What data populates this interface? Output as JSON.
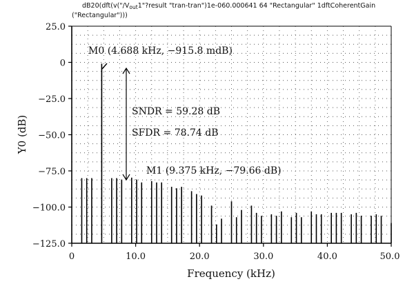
{
  "chart_data": {
    "type": "bar",
    "title_lines": [
      "dB20(dft(v(\"/V",
      "out",
      "1\"?result \"tran-tran\")1e-060.000641 64 \"Rectangular\" 1dftCoherentGain",
      "(\"Rectangular\")))"
    ],
    "xlabel": "Frequency (kHz)",
    "ylabel": "Y0 (dB)",
    "xlim": [
      0,
      50
    ],
    "ylim": [
      -125,
      25
    ],
    "xticks": [
      "0",
      "10.0",
      "20.0",
      "30.0",
      "40.0",
      "50.0"
    ],
    "yticks": [
      "25.0",
      "0",
      "-25.0",
      "-50.0",
      "-75.0",
      "-100.0",
      "-125.0"
    ],
    "grid": true,
    "x": [
      1.5625,
      2.344,
      3.125,
      4.6875,
      6.25,
      7.031,
      7.8125,
      9.375,
      10.156,
      10.9375,
      12.5,
      13.281,
      14.0625,
      15.625,
      16.406,
      17.1875,
      18.75,
      19.531,
      20.3125,
      21.875,
      22.656,
      23.4375,
      25.0,
      25.781,
      26.5625,
      28.125,
      28.906,
      29.6875,
      31.25,
      32.031,
      32.8125,
      34.375,
      35.156,
      35.9375,
      37.5,
      38.281,
      39.0625,
      40.625,
      41.406,
      42.1875,
      43.75,
      44.531,
      45.3125,
      46.875,
      47.656,
      48.4375,
      50.0
    ],
    "values": [
      -80,
      -80,
      -80,
      -0.9158,
      -80,
      -80,
      -81,
      -79.66,
      -81,
      -83,
      -82,
      -83,
      -83,
      -86,
      -87,
      -86,
      -89,
      -91,
      -92,
      -99,
      -112,
      -108,
      -96,
      -107,
      -102,
      -99,
      -104,
      -106,
      -105,
      -106,
      -103,
      -107,
      -104,
      -107,
      -103,
      -105,
      -105,
      -104,
      -104,
      -104,
      -105,
      -104,
      -106,
      -106,
      -105,
      -106,
      -111
    ],
    "markers": [
      {
        "name": "M0",
        "label": "M0 (4.688 kHz, −915.8 mdB)"
      },
      {
        "name": "M1",
        "label": "M1 (9.375 kHz, −79.66 dB)"
      }
    ],
    "annotations": [
      "SNDR = 59.28 dB",
      "SFDR = 78.74 dB"
    ]
  }
}
